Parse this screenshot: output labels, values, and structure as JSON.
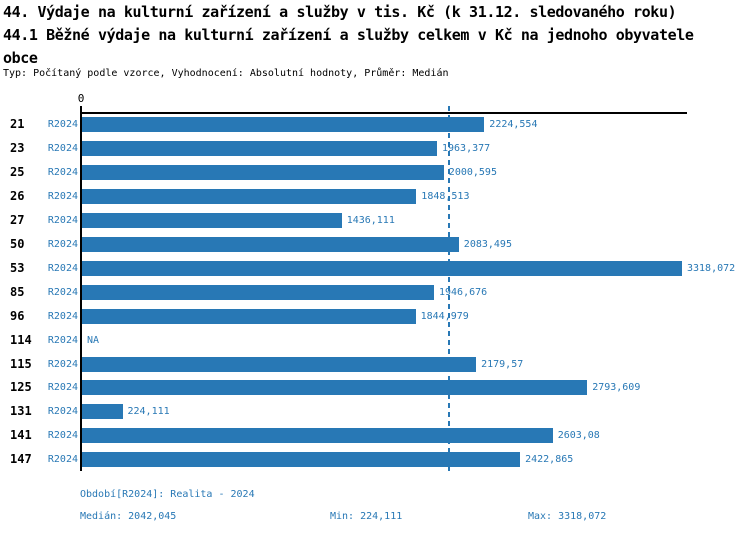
{
  "header": {
    "title_line1": "44. Výdaje na kulturní zařízení a služby v tis. Kč (k 31.12. sledovaného roku)",
    "title_line2": "44.1 Běžné výdaje na kulturní zařízení a služby celkem v Kč na jednoho obyvatele",
    "title_line3": "obce",
    "subtitle": "Typ: Počítaný podle vzorce, Vyhodnocení: Absolutní hodnoty, Průměr: Medián"
  },
  "chart_data": {
    "type": "bar",
    "orientation": "horizontal",
    "title": "44.1 Běžné výdaje na kulturní zařízení a služby celkem v Kč na jednoho obyvatele obce",
    "categories": [
      "21",
      "23",
      "25",
      "26",
      "27",
      "50",
      "53",
      "85",
      "96",
      "114",
      "115",
      "125",
      "131",
      "141",
      "147"
    ],
    "series": [
      {
        "name": "R2024",
        "values": [
          2224.554,
          1963.377,
          2000.595,
          1848.513,
          1436.111,
          2083.495,
          3318.072,
          1946.676,
          1844.979,
          null,
          2179.57,
          2793.609,
          224.111,
          2603.08,
          2422.865
        ],
        "value_labels": [
          "2224,554",
          "1963,377",
          "2000,595",
          "1848,513",
          "1436,111",
          "2083,495",
          "3318,072",
          "1946,676",
          "1844,979",
          "NA",
          "2179,57",
          "2793,609",
          "224,111",
          "2603,08",
          "2422,865"
        ]
      }
    ],
    "x_axis": {
      "origin_label": "0",
      "min": 0,
      "max": 3318.072
    },
    "median_line_value": 2042.045,
    "bar_color": "#2878b5",
    "median_line_color": "#2878b5",
    "grid": false,
    "legend_position": "none"
  },
  "footer": {
    "period": "Období[R2024]: Realita - 2024",
    "median": "Medián: 2042,045",
    "min": "Min: 224,111",
    "max": "Max: 3318,072"
  },
  "colors": {
    "accent": "#2878b5",
    "text": "#000000",
    "background": "#ffffff"
  }
}
